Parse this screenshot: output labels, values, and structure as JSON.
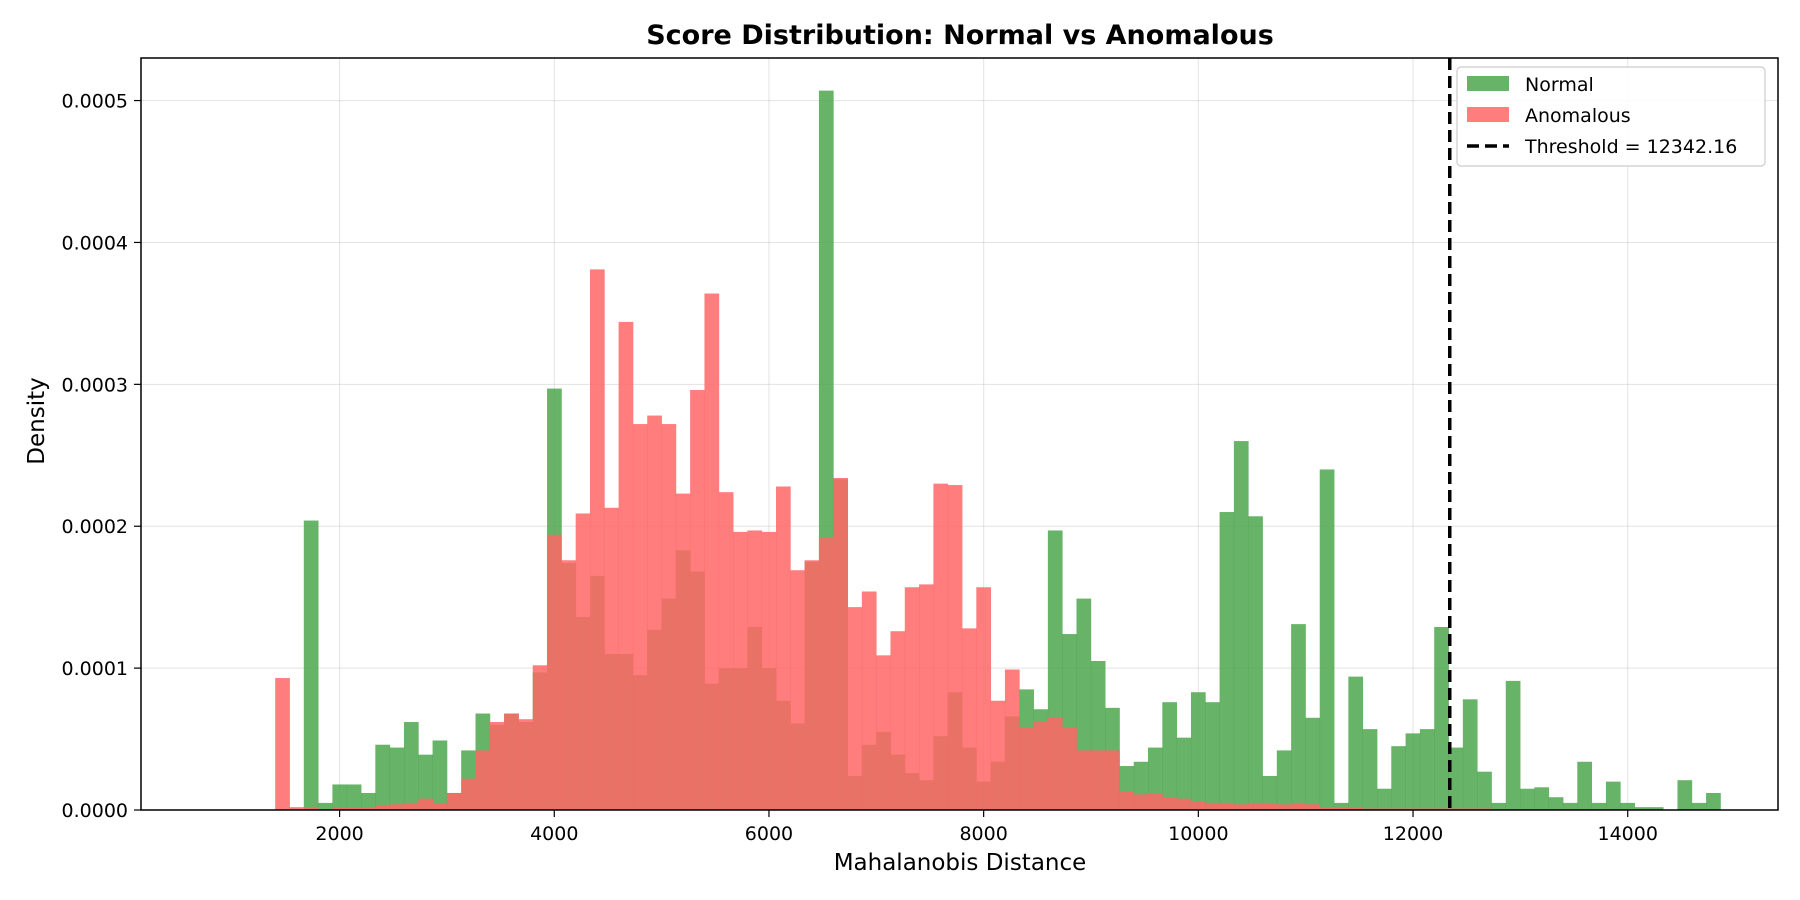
{
  "chart_data": {
    "type": "bar",
    "title": "Score Distribution: Normal vs Anomalous",
    "xlabel": "Mahalanobis Distance",
    "ylabel": "Density",
    "xlim": [
      150,
      15400
    ],
    "ylim": [
      0,
      0.00053
    ],
    "xticks": [
      2000,
      4000,
      6000,
      8000,
      10000,
      12000,
      14000
    ],
    "yticks": [
      0.0,
      0.0001,
      0.0002,
      0.0003,
      0.0004,
      0.0005
    ],
    "ytick_labels": [
      "0.0000",
      "0.0001",
      "0.0002",
      "0.0003",
      "0.0004",
      "0.0005"
    ],
    "grid": true,
    "legend_position": "top-right",
    "threshold": {
      "value": 12342.16,
      "label": "Threshold = 12342.16",
      "color": "#000000",
      "style": "dashed"
    },
    "bin_start": 1400,
    "bin_width": 133.3,
    "series": [
      {
        "name": "Normal",
        "color": "#4ca64c",
        "opacity": 0.85,
        "values": [
          0,
          0,
          0.000204,
          5e-06,
          1.8e-05,
          1.8e-05,
          1.2e-05,
          4.6e-05,
          4.4e-05,
          6.2e-05,
          3.9e-05,
          4.9e-05,
          1.2e-05,
          4.2e-05,
          6.8e-05,
          6e-05,
          6.8e-05,
          6.2e-05,
          9.7e-05,
          0.000297,
          0.000174,
          0.000136,
          0.000165,
          0.00011,
          0.00011,
          9.5e-05,
          0.000127,
          0.000149,
          0.000183,
          0.000168,
          8.9e-05,
          0.0001,
          0.0001,
          0.000129,
          0.0001,
          7.7e-05,
          6.1e-05,
          0.000175,
          0.000507,
          0.000233,
          2.4e-05,
          4.6e-05,
          5.5e-05,
          3.9e-05,
          2.6e-05,
          2.1e-05,
          5.2e-05,
          8.3e-05,
          4.4e-05,
          2e-05,
          3.4e-05,
          6.6e-05,
          8.5e-05,
          7.1e-05,
          0.000197,
          0.000124,
          0.000149,
          0.000105,
          7.2e-05,
          3.1e-05,
          3.4e-05,
          4.4e-05,
          7.6e-05,
          5.1e-05,
          8.3e-05,
          7.6e-05,
          0.00021,
          0.00026,
          0.000207,
          2.4e-05,
          4.2e-05,
          0.000131,
          6.5e-05,
          0.00024,
          5e-06,
          9.4e-05,
          5.7e-05,
          1.5e-05,
          4.5e-05,
          5.4e-05,
          5.7e-05,
          0.000129,
          4.4e-05,
          7.8e-05,
          2.7e-05,
          5e-06,
          9.1e-05,
          1.5e-05,
          1.6e-05,
          9e-06,
          5e-06,
          3.4e-05,
          5e-06,
          2e-05,
          5e-06,
          2e-06,
          2e-06,
          0,
          2.1e-05,
          5e-06,
          1.2e-05
        ]
      },
      {
        "name": "Anomalous",
        "color": "#ff6666",
        "opacity": 0.85,
        "values": [
          9.3e-05,
          2e-06,
          2e-06,
          0,
          2e-06,
          2e-06,
          2e-06,
          3e-06,
          4e-06,
          5e-06,
          8e-06,
          5e-06,
          1.2e-05,
          2.2e-05,
          4.2e-05,
          6.2e-05,
          6.8e-05,
          6.4e-05,
          0.000102,
          0.000194,
          0.000176,
          0.000209,
          0.000381,
          0.000213,
          0.000344,
          0.000272,
          0.000278,
          0.000272,
          0.000223,
          0.000296,
          0.000364,
          0.000224,
          0.000196,
          0.000197,
          0.000196,
          0.000228,
          0.000169,
          0.000176,
          0.000192,
          0.000234,
          0.000143,
          0.000154,
          0.000109,
          0.000126,
          0.000157,
          0.000159,
          0.00023,
          0.000229,
          0.000128,
          0.000157,
          7.7e-05,
          9.9e-05,
          5.8e-05,
          6.2e-05,
          6.5e-05,
          5.8e-05,
          4.2e-05,
          4.2e-05,
          4.2e-05,
          1.3e-05,
          1.1e-05,
          1.2e-05,
          9e-06,
          8e-06,
          6e-06,
          5e-06,
          5e-06,
          4e-06,
          5e-06,
          5e-06,
          4e-06,
          5e-06,
          4e-06,
          2e-06,
          2e-06,
          2e-06,
          1e-06,
          1e-06,
          1e-06,
          1e-06,
          1e-06,
          1e-06,
          1e-06,
          1e-06,
          1e-06,
          0,
          0,
          0,
          0,
          0,
          0,
          0,
          0,
          0,
          0,
          0,
          0,
          0,
          0,
          0,
          0
        ]
      }
    ]
  }
}
